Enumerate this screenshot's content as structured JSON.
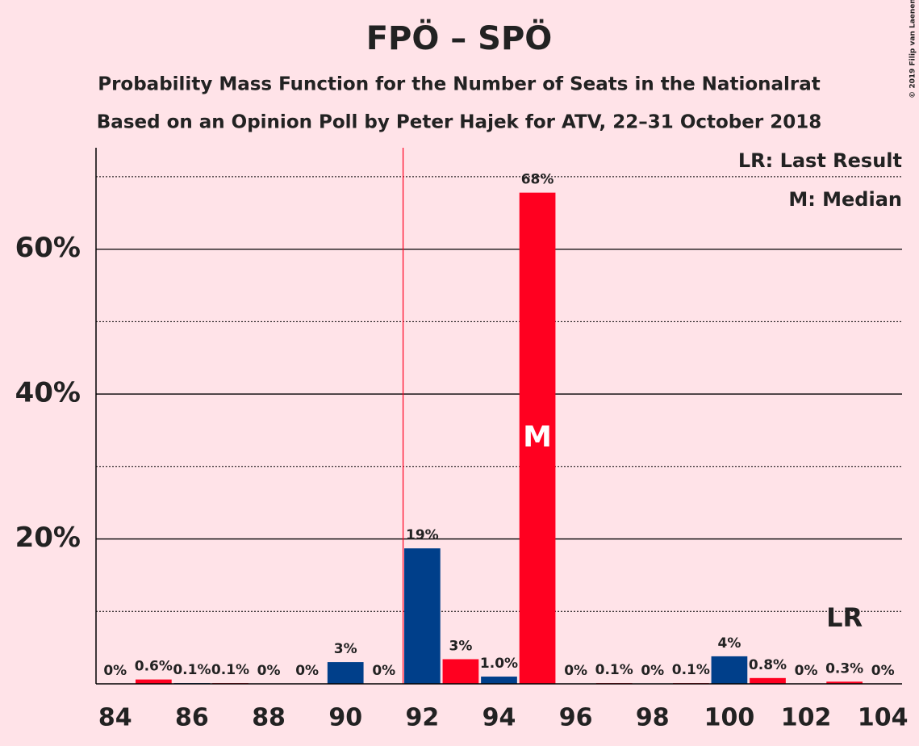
{
  "chart_data": {
    "type": "bar",
    "title": "FPÖ – SPÖ",
    "subtitle": [
      "Probability Mass Function for the Number of Seats in the Nationalrat",
      "Based on an Opinion Poll by Peter Hajek for ATV, 22–31 October 2018"
    ],
    "x": [
      84,
      85,
      86,
      87,
      88,
      89,
      90,
      91,
      92,
      93,
      94,
      95,
      96,
      97,
      98,
      99,
      100,
      101,
      102,
      103,
      104
    ],
    "values": [
      0,
      0.6,
      0.1,
      0.1,
      0,
      0,
      3,
      0,
      18.7,
      3.4,
      1.0,
      67.8,
      0,
      0.1,
      0,
      0.1,
      3.8,
      0.8,
      0,
      0.3,
      0
    ],
    "value_labels": [
      "0%",
      "0.6%",
      "0.1%",
      "0.1%",
      "0%",
      "0%",
      "3%",
      "0%",
      "19%",
      "3%",
      "1.0%",
      "68%",
      "0%",
      "0.1%",
      "0%",
      "0.1%",
      "4%",
      "0.8%",
      "0%",
      "0.3%",
      "0%"
    ],
    "colors": [
      "#ff0020",
      "#ff0020",
      "#003f8a",
      "#ff0020",
      "#003f8a",
      "#ff0020",
      "#003f8a",
      "#ff0020",
      "#003f8a",
      "#ff0020",
      "#003f8a",
      "#ff0020",
      "#003f8a",
      "#ff0020",
      "#003f8a",
      "#ff0020",
      "#003f8a",
      "#ff0020",
      "#003f8a",
      "#ff0020",
      "#003f8a"
    ],
    "xlim": [
      83.5,
      104.5
    ],
    "xticks": [
      84,
      86,
      88,
      90,
      92,
      94,
      96,
      98,
      100,
      102,
      104
    ],
    "ylim": [
      0,
      74
    ],
    "yticks": [
      {
        "value": 20,
        "label": "20%"
      },
      {
        "value": 40,
        "label": "40%"
      },
      {
        "value": 60,
        "label": "60%"
      }
    ],
    "minor_yticks": [
      10,
      30,
      50,
      70
    ],
    "majority_line": 91.5,
    "median": 95,
    "median_label": "M",
    "last_result": 103,
    "last_result_label": "LR",
    "legend": [
      "LR: Last Result",
      "M: Median"
    ],
    "copyright": "© 2019 Filip van Laenen"
  }
}
